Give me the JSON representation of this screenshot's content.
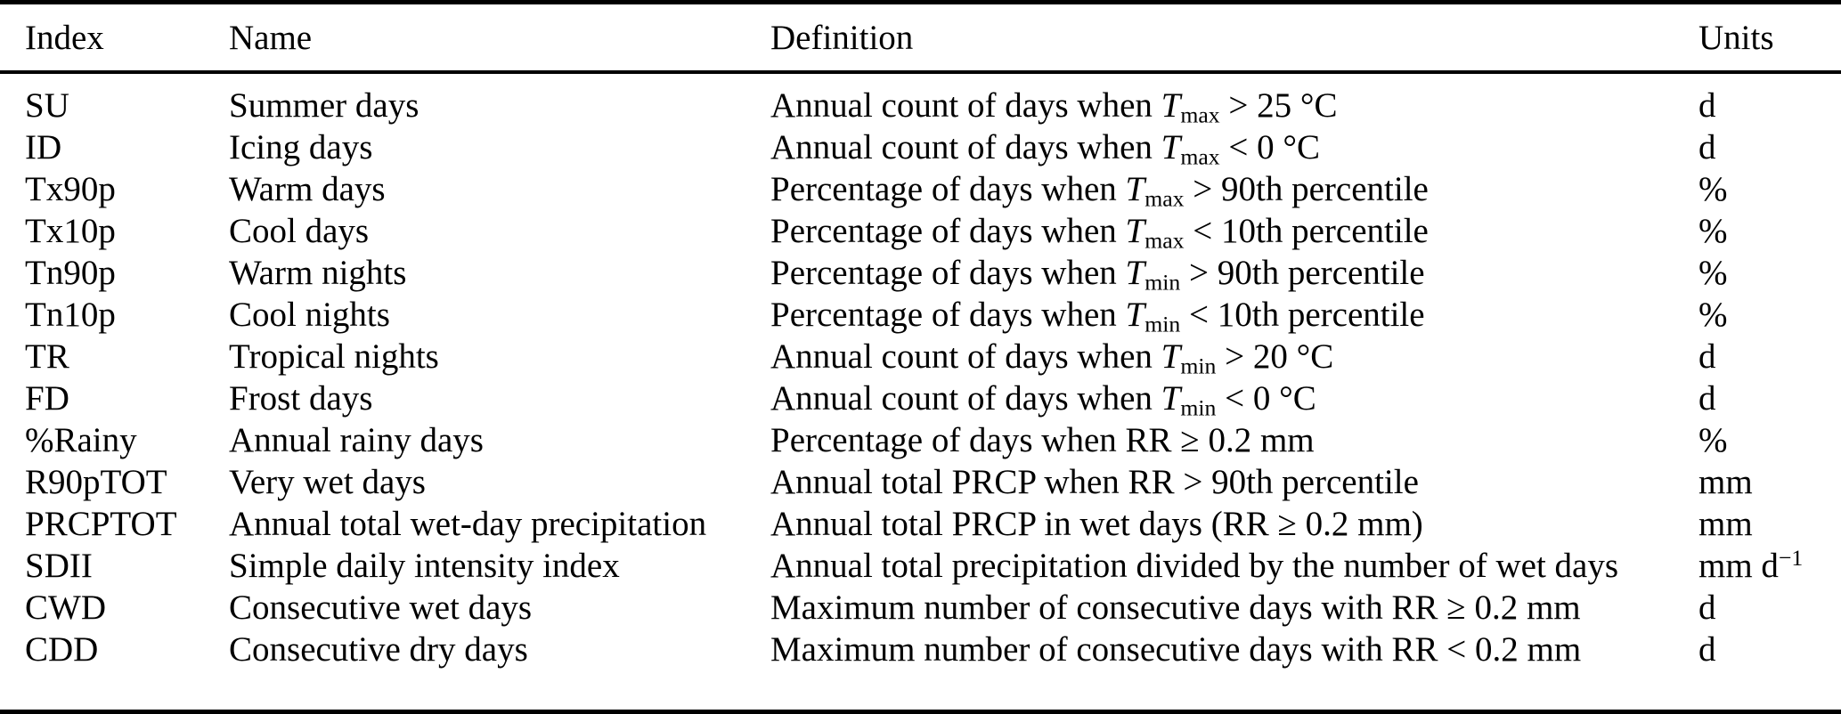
{
  "table": {
    "columns": [
      "Index",
      "Name",
      "Definition",
      "Units"
    ],
    "rows": [
      {
        "index": "SU",
        "name": "Summer days",
        "definition": {
          "pre": "Annual count of days when ",
          "var": "T",
          "sub": "max",
          "post": " > 25 °C"
        },
        "units": "d",
        "units_sup": ""
      },
      {
        "index": "ID",
        "name": "Icing days",
        "definition": {
          "pre": "Annual count of days when ",
          "var": "T",
          "sub": "max",
          "post": " < 0 °C"
        },
        "units": "d",
        "units_sup": ""
      },
      {
        "index": "Tx90p",
        "name": "Warm days",
        "definition": {
          "pre": "Percentage of days when ",
          "var": "T",
          "sub": "max",
          "post": " > 90th percentile"
        },
        "units": "%",
        "units_sup": ""
      },
      {
        "index": "Tx10p",
        "name": "Cool days",
        "definition": {
          "pre": "Percentage of days when ",
          "var": "T",
          "sub": "max",
          "post": " < 10th percentile"
        },
        "units": "%",
        "units_sup": ""
      },
      {
        "index": "Tn90p",
        "name": "Warm nights",
        "definition": {
          "pre": "Percentage of days when ",
          "var": "T",
          "sub": "min",
          "post": " > 90th percentile"
        },
        "units": "%",
        "units_sup": ""
      },
      {
        "index": "Tn10p",
        "name": "Cool nights",
        "definition": {
          "pre": "Percentage of days when ",
          "var": "T",
          "sub": "min",
          "post": " < 10th percentile"
        },
        "units": "%",
        "units_sup": ""
      },
      {
        "index": "TR",
        "name": "Tropical nights",
        "definition": {
          "pre": "Annual count of days when ",
          "var": "T",
          "sub": "min",
          "post": " > 20 °C"
        },
        "units": "d",
        "units_sup": ""
      },
      {
        "index": "FD",
        "name": "Frost days",
        "definition": {
          "pre": "Annual count of days when ",
          "var": "T",
          "sub": "min",
          "post": " < 0 °C"
        },
        "units": "d",
        "units_sup": ""
      },
      {
        "index": "%Rainy",
        "name": "Annual rainy days",
        "definition": {
          "pre": "Percentage of days when RR ≥ 0.2 mm",
          "var": "",
          "sub": "",
          "post": ""
        },
        "units": "%",
        "units_sup": ""
      },
      {
        "index": "R90pTOT",
        "name": "Very wet days",
        "definition": {
          "pre": "Annual total PRCP when RR > 90th percentile",
          "var": "",
          "sub": "",
          "post": ""
        },
        "units": "mm",
        "units_sup": ""
      },
      {
        "index": "PRCPTOT",
        "name": "Annual total wet-day precipitation",
        "definition": {
          "pre": "Annual total PRCP in wet days (RR ≥ 0.2 mm)",
          "var": "",
          "sub": "",
          "post": ""
        },
        "units": "mm",
        "units_sup": ""
      },
      {
        "index": "SDII",
        "name": "Simple daily intensity index",
        "definition": {
          "pre": "Annual total precipitation divided by the number of wet days",
          "var": "",
          "sub": "",
          "post": ""
        },
        "units": "mm d",
        "units_sup": "−1"
      },
      {
        "index": "CWD",
        "name": "Consecutive wet days",
        "definition": {
          "pre": "Maximum number of consecutive days with RR ≥ 0.2 mm",
          "var": "",
          "sub": "",
          "post": ""
        },
        "units": "d",
        "units_sup": ""
      },
      {
        "index": "CDD",
        "name": "Consecutive dry days",
        "definition": {
          "pre": "Maximum number of consecutive days with RR < 0.2 mm",
          "var": "",
          "sub": "",
          "post": ""
        },
        "units": "d",
        "units_sup": ""
      }
    ]
  },
  "colors": {
    "text": "#000000",
    "background": "#ffffff",
    "rule": "#000000"
  }
}
